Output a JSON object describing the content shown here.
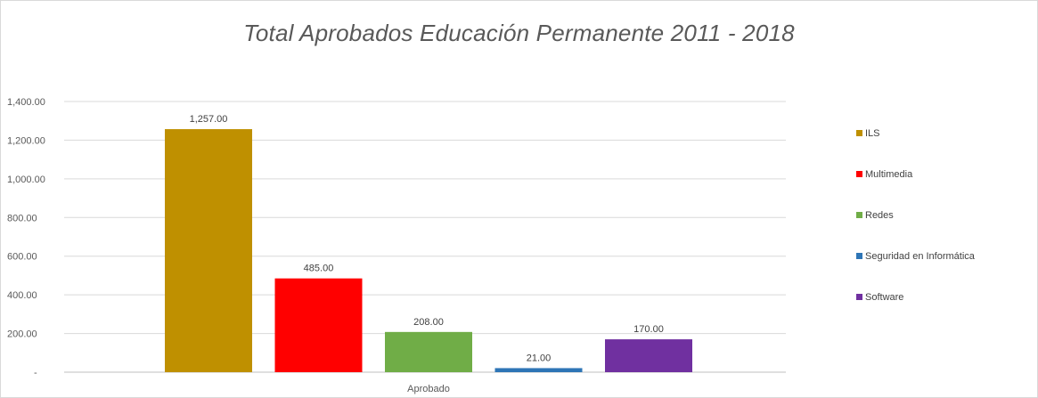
{
  "chart_data": {
    "type": "bar",
    "title": "Total Aprobados Educación Permanente 2011 - 2018",
    "categories": [
      "Aprobado"
    ],
    "series": [
      {
        "name": "ILS",
        "values": [
          1257
        ],
        "label": "1,257.00",
        "color": "#bf9000"
      },
      {
        "name": "Multimedia",
        "values": [
          485
        ],
        "label": "485.00",
        "color": "#ff0000"
      },
      {
        "name": "Redes",
        "values": [
          208
        ],
        "label": "208.00",
        "color": "#70ad47"
      },
      {
        "name": "Seguridad en Informática",
        "values": [
          21
        ],
        "label": "21.00",
        "color": "#2e75b6"
      },
      {
        "name": "Software",
        "values": [
          170
        ],
        "label": "170.00",
        "color": "#7030a0"
      }
    ],
    "yticks": [
      {
        "value": 0,
        "label": "-"
      },
      {
        "value": 200,
        "label": "200.00"
      },
      {
        "value": 400,
        "label": "400.00"
      },
      {
        "value": 600,
        "label": "600.00"
      },
      {
        "value": 800,
        "label": "800.00"
      },
      {
        "value": 1000,
        "label": "1,000.00"
      },
      {
        "value": 1200,
        "label": "1,200.00"
      },
      {
        "value": 1400,
        "label": "1,400.00"
      }
    ],
    "ylim": [
      0,
      1400
    ],
    "grid": true,
    "legend_position": "right"
  }
}
